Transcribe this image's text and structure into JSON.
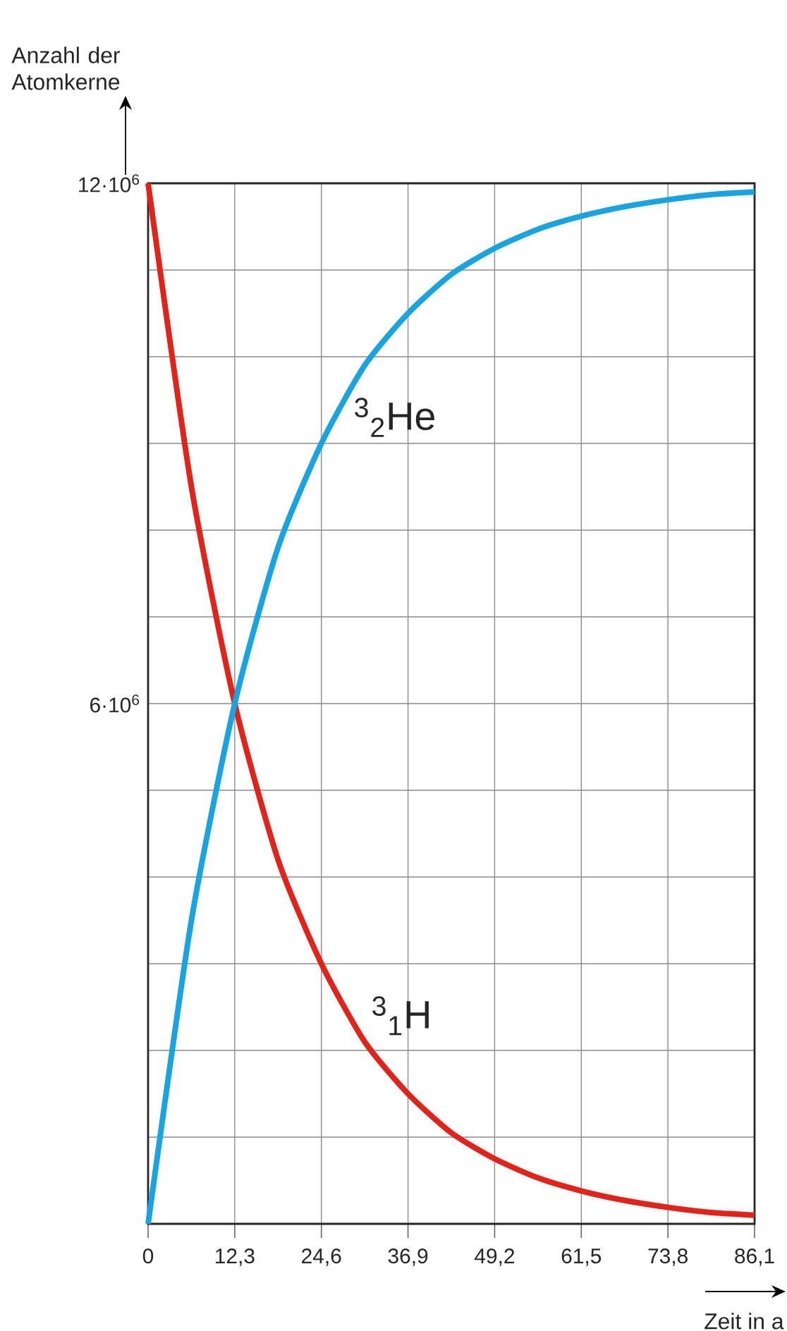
{
  "chart_data": {
    "type": "line",
    "ylabel": "Anzahl der Atomkerne",
    "xlabel": "Zeit in a",
    "x": [
      0,
      6.15,
      12.3,
      18.45,
      24.6,
      30.75,
      36.9,
      43.05,
      49.2,
      55.35,
      61.5,
      67.65,
      73.8,
      79.95,
      86.1
    ],
    "series": [
      {
        "name": "$^{3}$$_{1}$H",
        "color": "#e2231a",
        "values": [
          12000000,
          8500000,
          6000000,
          4200000,
          3000000,
          2100000,
          1500000,
          1050000,
          750000,
          530000,
          380000,
          270000,
          190000,
          130000,
          100000
        ]
      },
      {
        "name": "$^{3}$$_{2}$He",
        "color": "#18a4e0",
        "values": [
          0,
          3500000,
          6000000,
          7800000,
          9000000,
          9900000,
          10500000,
          10950000,
          11250000,
          11470000,
          11620000,
          11730000,
          11810000,
          11870000,
          11900000
        ]
      }
    ],
    "xlim": [
      0,
      86.1
    ],
    "ylim": [
      0,
      12000000
    ],
    "xticks": [
      {
        "value": 0,
        "label": "0"
      },
      {
        "value": 12.3,
        "label": "12,3"
      },
      {
        "value": 24.6,
        "label": "24,6"
      },
      {
        "value": 36.9,
        "label": "36,9"
      },
      {
        "value": 49.2,
        "label": "49,2"
      },
      {
        "value": 61.5,
        "label": "61,5"
      },
      {
        "value": 73.8,
        "label": "73,8"
      },
      {
        "value": 86.1,
        "label": "86,1"
      }
    ],
    "yticks": [
      {
        "value": 0,
        "label": null
      },
      {
        "value": 1000000,
        "label": null
      },
      {
        "value": 2000000,
        "label": null
      },
      {
        "value": 3000000,
        "label": null
      },
      {
        "value": 4000000,
        "label": null
      },
      {
        "value": 5000000,
        "label": null
      },
      {
        "value": 6000000,
        "label": "6·10$^{6}$"
      },
      {
        "value": 7000000,
        "label": null
      },
      {
        "value": 8000000,
        "label": null
      },
      {
        "value": 9000000,
        "label": null
      },
      {
        "value": 10000000,
        "label": null
      },
      {
        "value": 11000000,
        "label": null
      },
      {
        "value": 12000000,
        "label": "12·10$^{6}$"
      }
    ],
    "grid": true,
    "legend": false
  }
}
